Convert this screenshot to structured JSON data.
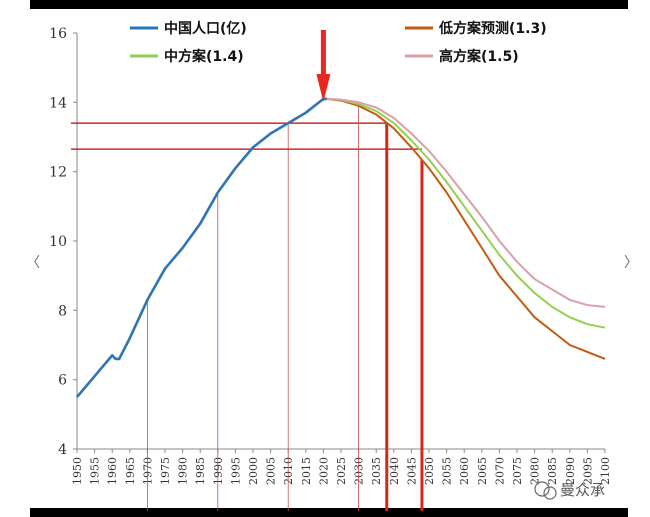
{
  "watermark": {
    "text": "曼众承"
  },
  "nav": {
    "prev_icon": "chevron-left-icon",
    "next_icon": "chevron-right-icon"
  },
  "chart_data": {
    "type": "line",
    "title": "",
    "xlabel": "",
    "ylabel": "",
    "xlim": [
      1950,
      2100
    ],
    "ylim": [
      4,
      16
    ],
    "yticks": [
      4,
      6,
      8,
      10,
      12,
      14,
      16
    ],
    "xticks": [
      1950,
      1955,
      1960,
      1965,
      1970,
      1975,
      1980,
      1985,
      1990,
      1995,
      2000,
      2005,
      2010,
      2015,
      2020,
      2025,
      2030,
      2035,
      2040,
      2045,
      2050,
      2055,
      2060,
      2065,
      2070,
      2075,
      2080,
      2085,
      2090,
      2095,
      2100
    ],
    "grid": false,
    "legend": "top",
    "series": [
      {
        "name": "中国人口(亿)",
        "color": "#2e75b6",
        "x": [
          1950,
          1955,
          1960,
          1961,
          1962,
          1965,
          1970,
          1975,
          1980,
          1985,
          1990,
          1995,
          2000,
          2005,
          2010,
          2015,
          2020,
          2021
        ],
        "y": [
          5.5,
          6.1,
          6.7,
          6.6,
          6.6,
          7.2,
          8.3,
          9.2,
          9.8,
          10.5,
          11.4,
          12.1,
          12.7,
          13.1,
          13.4,
          13.7,
          14.1,
          14.1
        ]
      },
      {
        "name": "低方案预测(1.3)",
        "color": "#c55a11",
        "x": [
          2021,
          2025,
          2030,
          2035,
          2040,
          2045,
          2050,
          2055,
          2060,
          2065,
          2070,
          2075,
          2080,
          2085,
          2090,
          2095,
          2100
        ],
        "y": [
          14.1,
          14.05,
          13.9,
          13.65,
          13.25,
          12.7,
          12.1,
          11.4,
          10.6,
          9.8,
          9.0,
          8.4,
          7.8,
          7.4,
          7.0,
          6.8,
          6.6
        ]
      },
      {
        "name": "中方案(1.4)",
        "color": "#92d050",
        "x": [
          2021,
          2025,
          2030,
          2035,
          2040,
          2045,
          2050,
          2055,
          2060,
          2065,
          2070,
          2075,
          2080,
          2085,
          2090,
          2095,
          2100
        ],
        "y": [
          14.1,
          14.07,
          13.95,
          13.75,
          13.4,
          12.9,
          12.35,
          11.7,
          11.0,
          10.3,
          9.6,
          9.0,
          8.5,
          8.1,
          7.8,
          7.6,
          7.5
        ]
      },
      {
        "name": "高方案(1.5)",
        "color": "#d9a0a8",
        "x": [
          2021,
          2025,
          2030,
          2035,
          2040,
          2045,
          2050,
          2055,
          2060,
          2065,
          2070,
          2075,
          2080,
          2085,
          2090,
          2095,
          2100
        ],
        "y": [
          14.1,
          14.08,
          14.0,
          13.85,
          13.55,
          13.1,
          12.6,
          12.0,
          11.35,
          10.7,
          10.0,
          9.4,
          8.9,
          8.6,
          8.3,
          8.15,
          8.1
        ]
      }
    ],
    "annotations": {
      "arrow": {
        "x": 2020,
        "color": "#e8281e"
      },
      "hlines": [
        {
          "y": 13.4,
          "x_end": 2038,
          "color": "#c00000"
        },
        {
          "y": 12.65,
          "x_end": 2048,
          "color": "#c00000"
        }
      ],
      "vlines_thin": [
        {
          "x": 1970
        },
        {
          "x": 1990
        },
        {
          "x": 2010
        },
        {
          "x": 2030
        }
      ],
      "vlines_thick": [
        {
          "x": 2038
        },
        {
          "x": 2048
        }
      ]
    }
  }
}
